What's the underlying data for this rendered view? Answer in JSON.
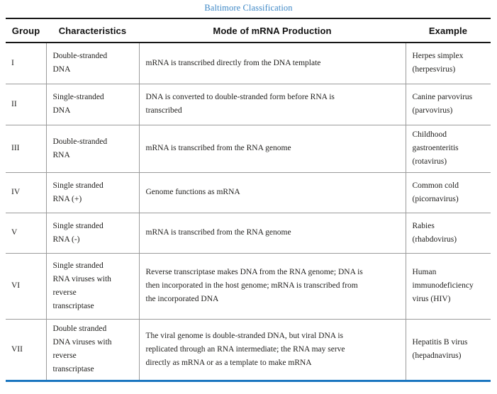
{
  "title": "Baltimore Classification",
  "colors": {
    "title_link_blue": "#3e88c6",
    "bottom_rule_blue": "#1b76c0",
    "header_rule_black": "#161616",
    "grid_gray": "#9b9b9b",
    "body_text": "#22211f"
  },
  "table": {
    "headers": [
      "Group",
      "Characteristics",
      "Mode of mRNA Production",
      "Example"
    ],
    "rows": [
      {
        "group": "I",
        "characteristics": "Double-stranded\nDNA",
        "mode": "mRNA is transcribed directly from the DNA template",
        "example": "Herpes simplex\n(herpesvirus)"
      },
      {
        "group": "II",
        "characteristics": "Single-stranded\nDNA",
        "mode": "DNA is converted to double-stranded form before RNA is\ntranscribed",
        "example": "Canine parvovirus\n(parvovirus)"
      },
      {
        "group": "III",
        "characteristics": "Double-stranded\nRNA",
        "mode": "mRNA is transcribed from the RNA genome",
        "example": "Childhood\ngastroenteritis\n(rotavirus)"
      },
      {
        "group": "IV",
        "characteristics": "Single stranded\nRNA (+)",
        "mode": "Genome functions as mRNA",
        "example": "Common cold\n(picornavirus)"
      },
      {
        "group": "V",
        "characteristics": "Single stranded\nRNA (-)",
        "mode": "mRNA is transcribed from the RNA genome",
        "example": "Rabies\n(rhabdovirus)"
      },
      {
        "group": "VI",
        "characteristics": "Single stranded\nRNA viruses with\nreverse\ntranscriptase",
        "mode": "Reverse transcriptase makes DNA from the RNA genome; DNA is\nthen incorporated in the host genome; mRNA is transcribed from\nthe incorporated DNA",
        "example": "Human\nimmunodeficiency\nvirus (HIV)"
      },
      {
        "group": "VII",
        "characteristics": "Double stranded\nDNA viruses with\nreverse\ntranscriptase",
        "mode": "The viral genome is double-stranded DNA, but viral DNA is\nreplicated through an RNA intermediate; the RNA may serve\ndirectly as mRNA or as a template to make mRNA",
        "example": "Hepatitis B virus\n(hepadnavirus)"
      }
    ]
  }
}
